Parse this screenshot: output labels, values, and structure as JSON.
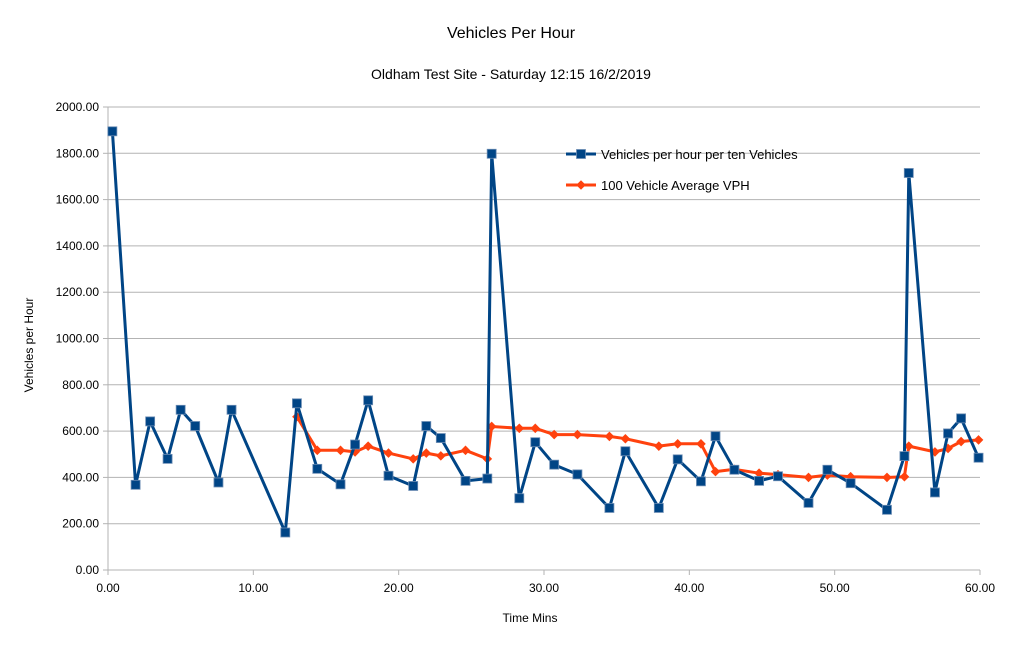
{
  "chart_data": {
    "type": "line",
    "title": "Vehicles Per Hour",
    "subtitle": "Oldham Test Site - Saturday 12:15 16/2/2019",
    "xlabel": "Time Mins",
    "ylabel": "Vehicles per Hour",
    "xlim": [
      0,
      60
    ],
    "ylim": [
      0,
      2000
    ],
    "x_ticks": [
      "0.00",
      "10.00",
      "20.00",
      "30.00",
      "40.00",
      "50.00",
      "60.00"
    ],
    "y_ticks": [
      "0.00",
      "200.00",
      "400.00",
      "600.00",
      "800.00",
      "1000.00",
      "1200.00",
      "1400.00",
      "1600.00",
      "1800.00",
      "2000.00"
    ],
    "grid": "horizontal",
    "legend_position": "top-right",
    "series": [
      {
        "name": "Vehicles per hour per ten Vehicles",
        "color": "#004586",
        "marker": "square",
        "x": [
          0.3,
          1.9,
          2.9,
          4.1,
          5.0,
          6.0,
          7.6,
          8.5,
          12.2,
          13.0,
          14.4,
          16.0,
          17.0,
          17.9,
          19.3,
          21.0,
          21.9,
          22.9,
          24.6,
          26.1,
          26.4,
          28.3,
          29.4,
          30.7,
          32.3,
          34.5,
          35.6,
          37.9,
          39.2,
          40.8,
          41.8,
          43.1,
          44.8,
          46.1,
          48.2,
          49.5,
          51.1,
          53.6,
          54.8,
          55.1,
          56.9,
          57.8,
          58.7,
          59.9
        ],
        "y": [
          1895,
          368,
          642,
          480,
          692,
          622,
          378,
          692,
          162,
          720,
          437,
          370,
          542,
          733,
          407,
          363,
          622,
          570,
          385,
          395,
          1798,
          310,
          552,
          455,
          413,
          268,
          513,
          268,
          478,
          383,
          578,
          433,
          385,
          405,
          290,
          433,
          375,
          260,
          492,
          1715,
          335,
          590,
          655,
          485
        ]
      },
      {
        "name": "100 Vehicle Average VPH",
        "color": "#ff420e",
        "marker": "diamond",
        "x": [
          13.0,
          14.4,
          16.0,
          17.0,
          17.9,
          19.3,
          21.0,
          21.9,
          22.9,
          24.6,
          26.1,
          26.4,
          28.3,
          29.4,
          30.7,
          32.3,
          34.5,
          35.6,
          37.9,
          39.2,
          40.8,
          41.8,
          43.1,
          44.8,
          46.1,
          48.2,
          49.5,
          51.1,
          53.6,
          54.8,
          55.1,
          56.9,
          57.8,
          58.7,
          59.9
        ],
        "y": [
          662,
          517,
          517,
          510,
          535,
          505,
          480,
          505,
          493,
          517,
          480,
          620,
          612,
          612,
          585,
          585,
          577,
          567,
          535,
          545,
          545,
          425,
          435,
          418,
          412,
          400,
          410,
          403,
          400,
          403,
          535,
          510,
          525,
          555,
          562
        ]
      }
    ]
  }
}
